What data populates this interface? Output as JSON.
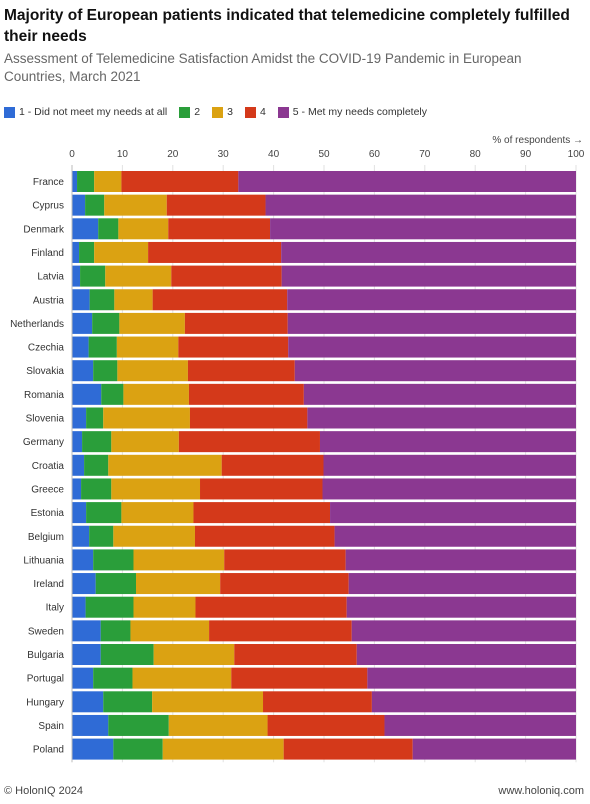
{
  "chart_data": {
    "type": "bar",
    "orientation": "horizontal",
    "stacked": true,
    "title": "Majority of European patients indicated that telemedicine completely fulfilled their needs",
    "subtitle": "Assessment of Telemedicine Satisfaction Amidst the COVID-19 Pandemic in European Countries, March 2021",
    "axis_caption": "% of respondents →",
    "xlim": [
      0,
      100
    ],
    "xticks": [
      "0",
      "10",
      "20",
      "30",
      "40",
      "50",
      "60",
      "70",
      "80",
      "90",
      "100"
    ],
    "grid": true,
    "legend_position": "top-left",
    "categories": [
      "France",
      "Cyprus",
      "Denmark",
      "Finland",
      "Latvia",
      "Austria",
      "Netherlands",
      "Czechia",
      "Slovakia",
      "Romania",
      "Slovenia",
      "Germany",
      "Croatia",
      "Greece",
      "Estonia",
      "Belgium",
      "Lithuania",
      "Ireland",
      "Italy",
      "Sweden",
      "Bulgaria",
      "Portugal",
      "Hungary",
      "Spain",
      "Poland"
    ],
    "series": [
      {
        "name": "1 - Did not meet my needs at all",
        "color": "#2f6bd6",
        "values": [
          1.0,
          2.6,
          5.2,
          1.4,
          1.6,
          3.5,
          4.0,
          3.3,
          4.2,
          5.8,
          2.8,
          2.0,
          2.4,
          1.8,
          2.8,
          3.4,
          4.2,
          4.7,
          2.7,
          5.7,
          5.7,
          4.2,
          6.2,
          7.2,
          8.2
        ]
      },
      {
        "name": "2",
        "color": "#2a9e3a",
        "values": [
          3.4,
          3.8,
          4.0,
          3.0,
          5.0,
          4.9,
          5.4,
          5.6,
          4.8,
          4.4,
          3.4,
          5.8,
          4.8,
          6.0,
          7.0,
          4.8,
          8.0,
          8.0,
          9.5,
          5.9,
          10.5,
          7.8,
          9.7,
          12.0,
          9.8
        ]
      },
      {
        "name": "3",
        "color": "#dba212",
        "values": [
          5.4,
          12.4,
          9.9,
          10.7,
          13.1,
          7.6,
          13.0,
          12.2,
          14.0,
          13.0,
          17.2,
          13.4,
          22.5,
          17.6,
          14.3,
          16.2,
          18.0,
          16.7,
          12.3,
          15.6,
          16.0,
          19.6,
          22.0,
          19.6,
          24.0
        ]
      },
      {
        "name": "4",
        "color": "#d4391a",
        "values": [
          23.2,
          19.6,
          20.2,
          26.4,
          21.9,
          26.7,
          20.4,
          21.8,
          21.2,
          22.8,
          23.3,
          28.0,
          20.2,
          24.3,
          27.1,
          27.7,
          24.1,
          25.5,
          30.0,
          28.3,
          24.3,
          27.0,
          21.6,
          23.2,
          25.6
        ]
      },
      {
        "name": "5 - Met my needs completely",
        "color": "#8b3891",
        "values": [
          67.0,
          61.6,
          60.7,
          58.5,
          58.4,
          57.3,
          57.2,
          57.1,
          55.8,
          54.0,
          53.3,
          50.8,
          50.1,
          50.3,
          48.8,
          47.9,
          45.7,
          45.1,
          45.5,
          44.5,
          43.5,
          41.4,
          40.5,
          38.0,
          32.4
        ]
      }
    ]
  },
  "footer": {
    "copyright": "© HolonIQ 2024",
    "website": "www.holoniq.com"
  }
}
